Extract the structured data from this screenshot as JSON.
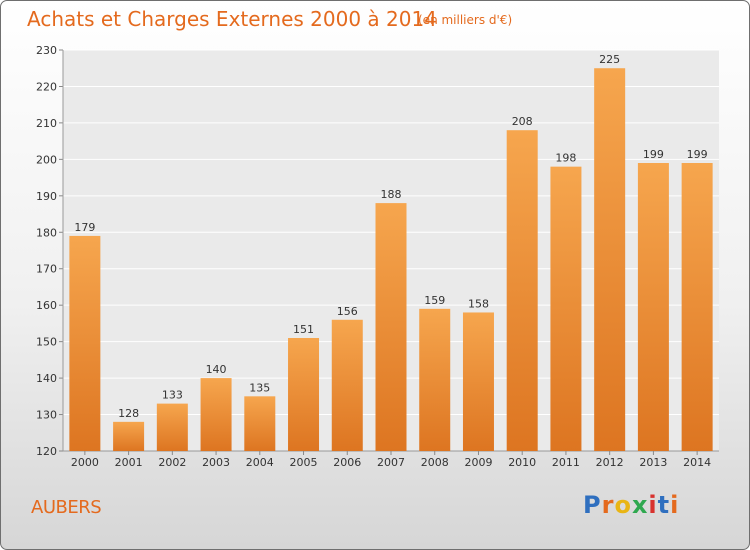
{
  "header": {
    "title": "Achats et Charges Externes 2000 à 2014",
    "unit": "(en milliers d'€)"
  },
  "footer": {
    "place": "AUBERS",
    "logo": "Proxiti"
  },
  "colors": {
    "accent": "#e46a1e",
    "bar_top": "#f6a64e",
    "bar_bottom": "#dd7521",
    "logo": [
      "#2f6fbf",
      "#e46a1e",
      "#e9b514",
      "#2fa84f",
      "#d8322e",
      "#2f6fbf",
      "#e46a1e"
    ]
  },
  "chart_data": {
    "type": "bar",
    "categories": [
      "2000",
      "2001",
      "2002",
      "2003",
      "2004",
      "2005",
      "2006",
      "2007",
      "2008",
      "2009",
      "2010",
      "2011",
      "2012",
      "2013",
      "2014"
    ],
    "values": [
      179,
      128,
      133,
      140,
      135,
      151,
      156,
      188,
      159,
      158,
      208,
      198,
      225,
      199,
      199
    ],
    "ylim": [
      120,
      230
    ],
    "yticks": [
      120,
      130,
      140,
      150,
      160,
      170,
      180,
      190,
      200,
      210,
      220,
      230
    ],
    "grid": true
  }
}
